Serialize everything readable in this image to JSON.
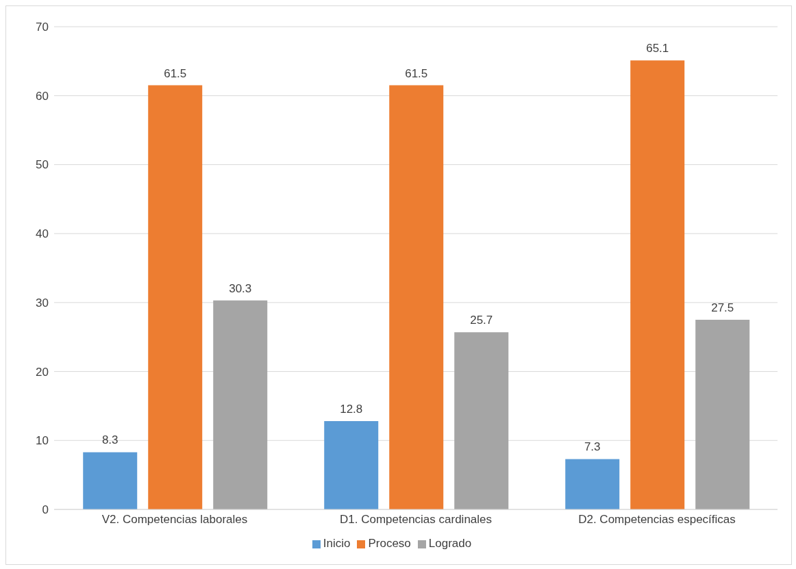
{
  "chart_data": {
    "type": "bar",
    "categories": [
      "V2. Competencias laborales",
      "D1. Competencias cardinales",
      "D2. Competencias específicas"
    ],
    "series": [
      {
        "name": "Inicio",
        "color": "#5b9bd5",
        "values": [
          8.3,
          12.8,
          7.3
        ]
      },
      {
        "name": "Proceso",
        "color": "#ed7d31",
        "values": [
          61.5,
          61.5,
          65.1
        ]
      },
      {
        "name": "Logrado",
        "color": "#a5a5a5",
        "values": [
          30.3,
          25.7,
          27.5
        ]
      }
    ],
    "ylim": [
      0,
      70
    ],
    "yticks": [
      0,
      10,
      20,
      30,
      40,
      50,
      60,
      70
    ],
    "grid": "y",
    "legend": "bottom",
    "data_labels": true
  }
}
